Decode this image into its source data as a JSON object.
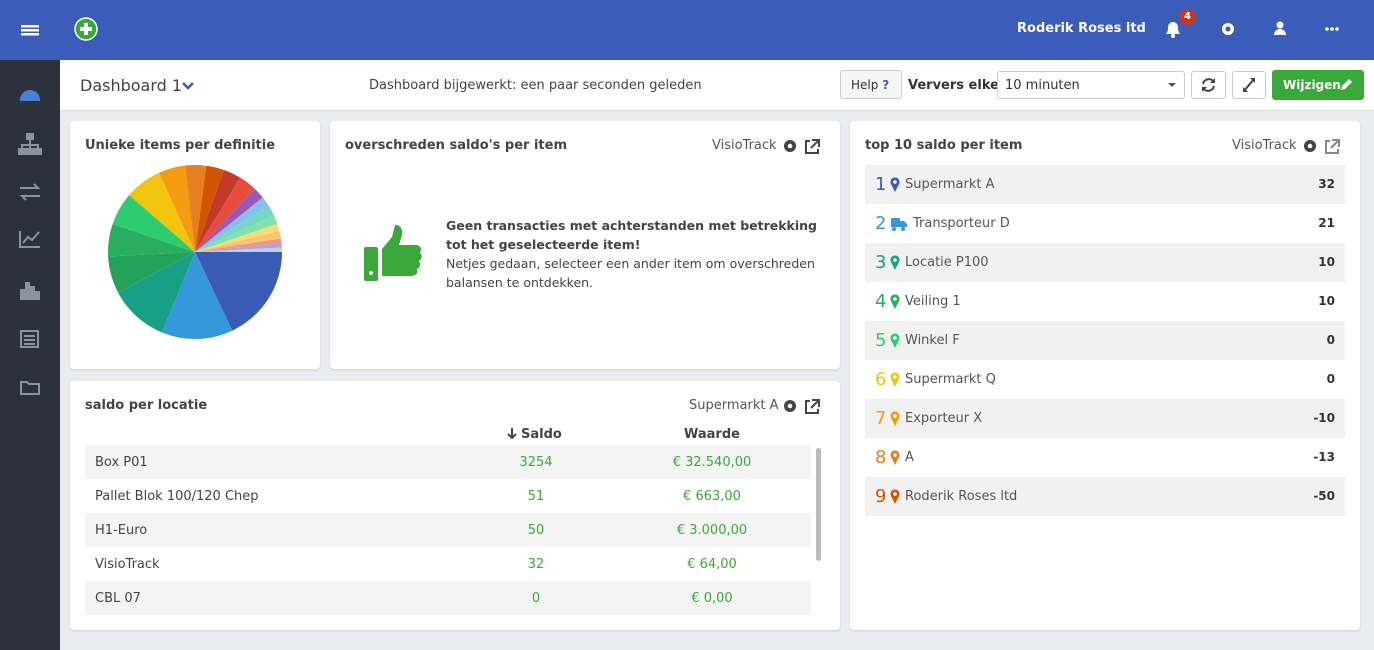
{
  "header": {
    "company": "Roderik Roses ltd",
    "notifications": "4"
  },
  "toolbar": {
    "dashboard": "Dashboard 1",
    "updated": "Dashboard bijgewerkt: een paar seconden geleden",
    "help": "Help",
    "help_icon": "?",
    "refresh_label": "Ververs elke:",
    "refresh_value": "10 minuten",
    "edit": "Wijzigen"
  },
  "chart_data": {
    "type": "pie",
    "title": "Unieke items per definitie",
    "values": [
      65,
      48,
      40,
      25,
      22,
      22,
      25,
      18,
      14,
      12,
      12,
      12,
      8,
      7,
      7,
      6,
      5,
      5,
      3,
      3,
      3
    ],
    "colors": [
      "#3a5bb5",
      "#3498db",
      "#17a085",
      "#23a35a",
      "#27ae60",
      "#2ecc71",
      "#f1c40f",
      "#f39c12",
      "#e67e22",
      "#d35400",
      "#c0392b",
      "#e74c3c",
      "#9b59b6",
      "#85c1e9",
      "#76d7c4",
      "#82e0aa",
      "#f7dc6f",
      "#f8c471",
      "#f1948a",
      "#c39bd3",
      "#aed6f1"
    ]
  },
  "exceeded": {
    "title": "overschreden saldo's per item",
    "source": "VisioTrack",
    "message_bold": "Geen transacties met achterstanden met betrekking tot het geselecteerde item!",
    "message": "Netjes gedaan, selecteer een ander item om overschreden balansen te ontdekken."
  },
  "location_table": {
    "title": "saldo per locatie",
    "source": "Supermarkt A",
    "columns": [
      "Saldo",
      "Waarde"
    ],
    "rows": [
      [
        "Box P01",
        "3254",
        "€ 32.540,00"
      ],
      [
        "Pallet Blok 100/120 Chep",
        "51",
        "€ 663,00"
      ],
      [
        "H1-Euro",
        "50",
        "€ 3.000,00"
      ],
      [
        "VisioTrack",
        "32",
        "€ 64,00"
      ],
      [
        "CBL 07",
        "0",
        "€ 0,00"
      ]
    ]
  },
  "top10": {
    "title": "top 10 saldo per item",
    "source": "VisioTrack",
    "items": [
      {
        "rank": "1",
        "name": "Supermarkt A",
        "value": "32",
        "color": "#3a5bb5",
        "icon": "pin"
      },
      {
        "rank": "2",
        "name": "Transporteur D",
        "value": "21",
        "color": "#3498db",
        "icon": "truck"
      },
      {
        "rank": "3",
        "name": "Locatie P100",
        "value": "10",
        "color": "#17a085",
        "icon": "pin"
      },
      {
        "rank": "4",
        "name": "Veiling 1",
        "value": "10",
        "color": "#27ae60",
        "icon": "pin"
      },
      {
        "rank": "5",
        "name": "Winkel F",
        "value": "0",
        "color": "#2ecc71",
        "icon": "pin"
      },
      {
        "rank": "6",
        "name": "Supermarkt Q",
        "value": "0",
        "color": "#f1c40f",
        "icon": "pin"
      },
      {
        "rank": "7",
        "name": "Exporteur X",
        "value": "-10",
        "color": "#f39c12",
        "icon": "pin"
      },
      {
        "rank": "8",
        "name": "A",
        "value": "-13",
        "color": "#e67e22",
        "icon": "pin"
      },
      {
        "rank": "9",
        "name": "Roderik Roses ltd",
        "value": "-50",
        "color": "#d35400",
        "icon": "pin"
      }
    ]
  }
}
